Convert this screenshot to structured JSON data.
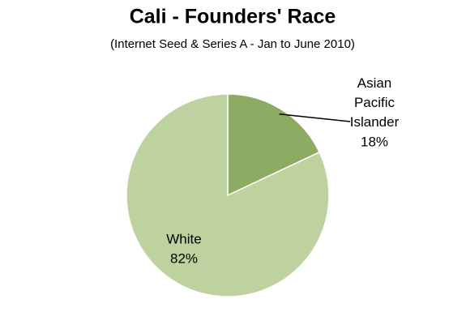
{
  "chart_data": {
    "type": "pie",
    "title": "Cali - Founders' Race",
    "subtitle": "(Internet Seed & Series A - Jan to June 2010)",
    "categories": [
      "Asian Pacific Islander",
      "White"
    ],
    "values": [
      18,
      82
    ],
    "value_labels": [
      "18%",
      "82%"
    ],
    "colors": [
      "#8eab63",
      "#bed2a0"
    ]
  }
}
